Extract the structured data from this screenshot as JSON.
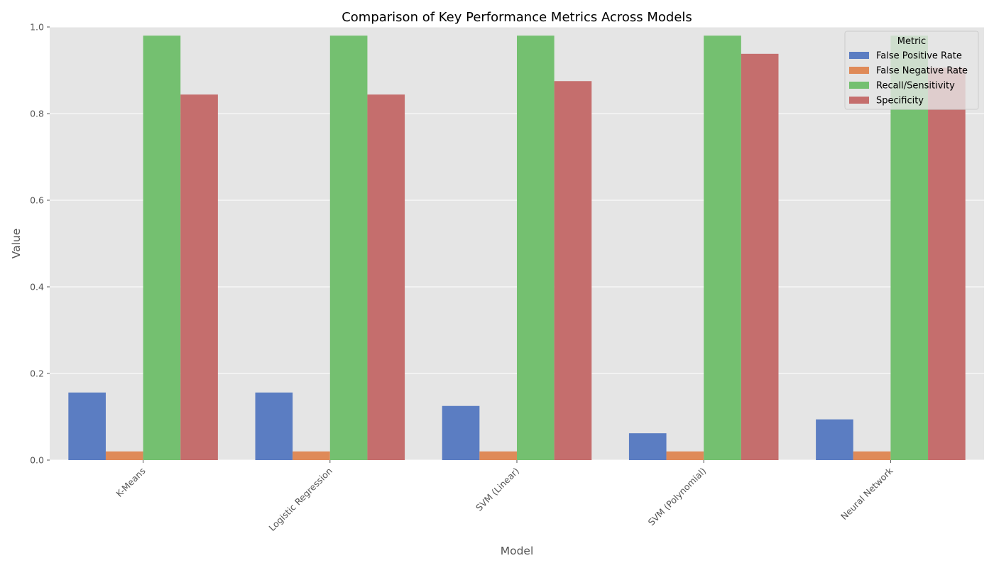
{
  "chart_data": {
    "type": "bar",
    "title": "Comparison of Key Performance Metrics Across Models",
    "xlabel": "Model",
    "ylabel": "Value",
    "ylim": [
      0,
      1.0
    ],
    "yticks": [
      "0.0",
      "0.2",
      "0.4",
      "0.6",
      "0.8",
      "1.0"
    ],
    "categories": [
      "K-Means",
      "Logistic Regression",
      "SVM (Linear)",
      "SVM (Polynomial)",
      "Neural Network"
    ],
    "legend_title": "Metric",
    "legend_position": "top-right",
    "grid": true,
    "series": [
      {
        "name": "False Positive Rate",
        "color": "#5b7dc2",
        "values": [
          0.156,
          0.156,
          0.125,
          0.062,
          0.094
        ]
      },
      {
        "name": "False Negative Rate",
        "color": "#df8a58",
        "values": [
          0.02,
          0.02,
          0.02,
          0.02,
          0.02
        ]
      },
      {
        "name": "Recall/Sensitivity",
        "color": "#74c070",
        "values": [
          0.98,
          0.98,
          0.98,
          0.98,
          0.98
        ]
      },
      {
        "name": "Specificity",
        "color": "#c56e6d",
        "values": [
          0.844,
          0.844,
          0.875,
          0.938,
          0.906
        ]
      }
    ]
  }
}
